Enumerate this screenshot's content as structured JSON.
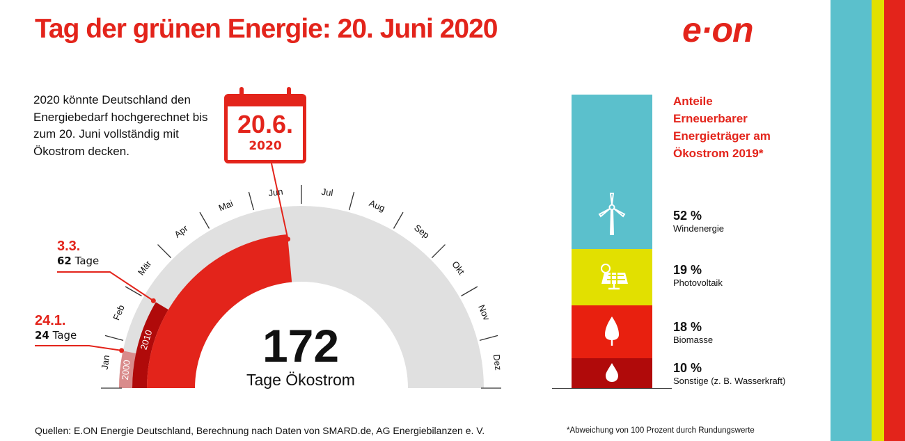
{
  "title": "Tag der grünen Energie: 20. Juni 2020",
  "logo": "e·on",
  "intro": "2020 könnte Deutschland den Energiebedarf hochgerechnet bis zum 20. Juni vollständig mit Ökostrom decken.",
  "calendar": {
    "date": "20.6.",
    "year": "2020"
  },
  "callouts": [
    {
      "date": "3.3.",
      "days": "62",
      "unit": "Tage"
    },
    {
      "date": "24.1.",
      "days": "24",
      "unit": "Tage"
    }
  ],
  "big_number": "172",
  "big_label": "Tage Ökostrom",
  "footer": "Quellen: E.ON Energie Deutschland, Berechnung nach Daten von SMARD.de, AG Energiebilanzen e. V.",
  "footnote": "*Abweichung von 100 Prozent durch Rundungswerte",
  "colors": {
    "red": "#e3241b",
    "dark_red": "#b00a0a",
    "pink": "#d98b8b",
    "gray": "#e0e0e0",
    "cyan": "#5bc0cc",
    "yellow": "#e2e000"
  },
  "chart_data": [
    {
      "type": "gauge",
      "months": [
        "Jan",
        "Feb",
        "Mär",
        "Apr",
        "Mai",
        "Jun",
        "Jul",
        "Aug",
        "Sep",
        "Okt",
        "Nov",
        "Dez"
      ],
      "days_in_year": 365,
      "series": [
        {
          "name": "2000",
          "days": 24,
          "color": "#d98b8b"
        },
        {
          "name": "2010",
          "days": 62,
          "color": "#b00a0a"
        },
        {
          "name": "2020",
          "days": 172,
          "color": "#e3241b"
        }
      ]
    },
    {
      "type": "bar",
      "stacked": true,
      "title": "Anteile Erneuerbarer Energieträger am Ökostrom 2019*",
      "categories": [
        "Windenergie",
        "Photovoltaik",
        "Biomasse",
        "Sonstige (z. B. Wasserkraft)"
      ],
      "values": [
        52,
        19,
        18,
        10
      ],
      "labels": [
        "52 %",
        "19 %",
        "18 %",
        "10 %"
      ],
      "icons": [
        "wind-turbine-icon",
        "solar-panel-icon",
        "leaf-icon",
        "water-drop-icon"
      ],
      "colors": [
        "#5bc0cc",
        "#e2e000",
        "#e8200f",
        "#b00a0a"
      ]
    }
  ]
}
